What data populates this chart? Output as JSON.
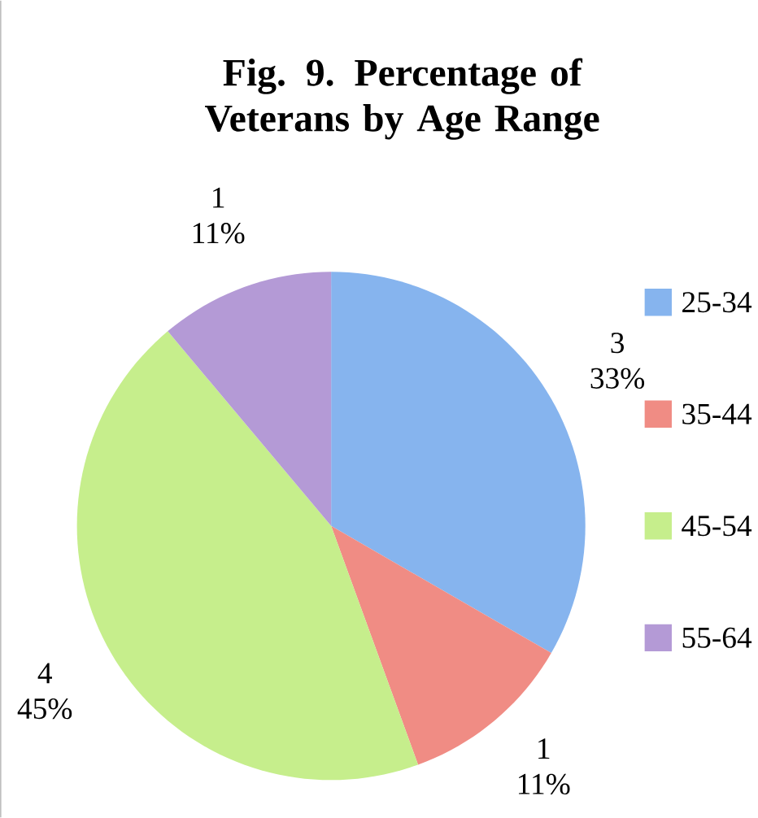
{
  "chart_data": {
    "type": "pie",
    "title": "Fig. 9. Percentage of Veterans by Age Range",
    "categories": [
      "25-34",
      "35-44",
      "45-54",
      "55-64"
    ],
    "values": [
      3,
      1,
      4,
      1
    ],
    "colors": [
      "#86b4ee",
      "#f08c84",
      "#c6ee8c",
      "#b49ad6"
    ],
    "value_labels": [
      "3 33%",
      "1 11%",
      "4 45%",
      "1 11%"
    ],
    "legend": "right"
  }
}
